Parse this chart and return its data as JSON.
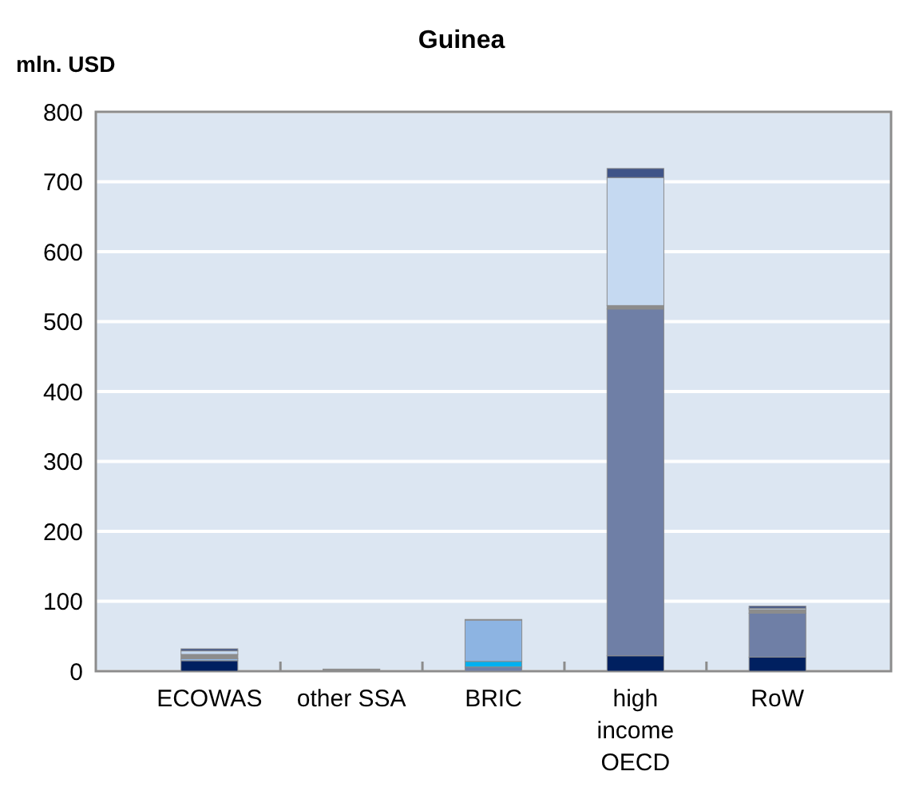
{
  "chart_data": {
    "type": "bar",
    "title": "Guinea",
    "ylabel": "mln. USD",
    "stacked": true,
    "categories": [
      "ECOWAS",
      "other SSA",
      "BRIC",
      "high income OECD",
      "RoW"
    ],
    "series": [
      {
        "color": "#002060",
        "values": [
          15,
          0,
          0,
          22,
          20
        ]
      },
      {
        "color": "#6f7fa6",
        "values": [
          0,
          0,
          6,
          496,
          63
        ]
      },
      {
        "color": "#00b0f0",
        "values": [
          0,
          0,
          8,
          0,
          0
        ]
      },
      {
        "color": "#8db4e2",
        "values": [
          3,
          0,
          59,
          0,
          0
        ]
      },
      {
        "color": "#8c8c8c",
        "values": [
          6,
          3,
          0,
          5,
          5
        ]
      },
      {
        "color": "#c5d9f1",
        "values": [
          5,
          0,
          1,
          183,
          2
        ]
      },
      {
        "color": "#3f5488",
        "values": [
          3,
          0,
          0,
          13,
          3
        ]
      }
    ],
    "ylim": [
      0,
      800
    ],
    "yticks": [
      0,
      100,
      200,
      300,
      400,
      500,
      600,
      700,
      800
    ],
    "grid": "y"
  }
}
